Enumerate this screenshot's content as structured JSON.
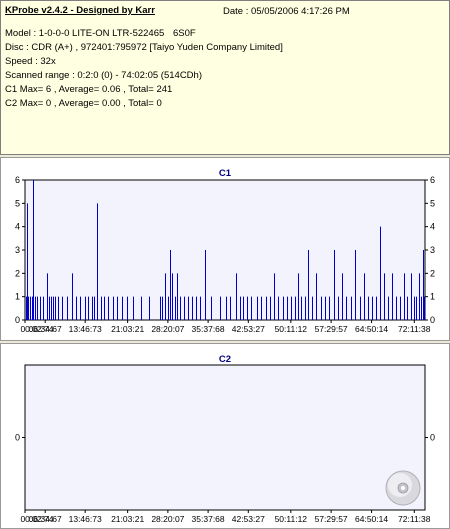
{
  "info": {
    "title": "KProbe v2.4.2 - Designed by Karr",
    "date": "Date : 05/05/2006 4:17:26 PM",
    "model": "Model : 1-0-0-0 LITE-ON LTR-522465",
    "firmware": "6S0F",
    "disc": "Disc : CDR (A+) , 972401:795972 [Taiyo Yuden Company Limited]",
    "speed": "Speed : 32x",
    "range": "Scanned range : 0:2:0 (0) - 74:02:05 (514CDh)",
    "c1_stats": "C1 Max= 6 , Average= 0.06 , Total= 241",
    "c2_stats": "C2 Max= 0 , Average= 0.00 , Total= 0"
  },
  "colors": {
    "bar": "#0000c8",
    "plot_bg": "#f3f3fd",
    "title": "#000080",
    "info_bg": "#ffffe1"
  },
  "icons": {
    "disc": "cd-disc-icon"
  },
  "chart_data": [
    {
      "type": "bar",
      "title": "C1",
      "ylim": [
        0,
        6
      ],
      "yticks": [
        0,
        1,
        2,
        3,
        4,
        5,
        6
      ],
      "xlim": [
        2.74,
        74.02
      ],
      "xtick_labels": [
        "00:02:74",
        "06:34:67",
        "13:46:73",
        "21:03:21",
        "28:20:07",
        "35:37:68",
        "42:53:27",
        "50:11:12",
        "57:29:57",
        "64:50:14",
        "72:11:38"
      ],
      "xtick_values": [
        2.74,
        6.34,
        13.46,
        21.03,
        28.2,
        35.37,
        42.53,
        50.11,
        57.29,
        64.5,
        72.11
      ],
      "points": [
        {
          "x": 2.9,
          "y": 1
        },
        {
          "x": 3.1,
          "y": 5
        },
        {
          "x": 3.35,
          "y": 1
        },
        {
          "x": 3.6,
          "y": 1
        },
        {
          "x": 3.9,
          "y": 1
        },
        {
          "x": 4.2,
          "y": 6
        },
        {
          "x": 4.5,
          "y": 1
        },
        {
          "x": 4.9,
          "y": 1
        },
        {
          "x": 5.4,
          "y": 1
        },
        {
          "x": 6.0,
          "y": 1
        },
        {
          "x": 6.7,
          "y": 2
        },
        {
          "x": 7.0,
          "y": 1
        },
        {
          "x": 7.3,
          "y": 1
        },
        {
          "x": 7.7,
          "y": 1
        },
        {
          "x": 8.1,
          "y": 1
        },
        {
          "x": 8.6,
          "y": 1
        },
        {
          "x": 9.3,
          "y": 1
        },
        {
          "x": 10.2,
          "y": 1
        },
        {
          "x": 11.1,
          "y": 2
        },
        {
          "x": 11.8,
          "y": 1
        },
        {
          "x": 12.6,
          "y": 1
        },
        {
          "x": 13.4,
          "y": 1
        },
        {
          "x": 14.0,
          "y": 1
        },
        {
          "x": 14.6,
          "y": 1
        },
        {
          "x": 15.1,
          "y": 1
        },
        {
          "x": 15.6,
          "y": 5
        },
        {
          "x": 16.2,
          "y": 1
        },
        {
          "x": 16.8,
          "y": 1
        },
        {
          "x": 17.5,
          "y": 1
        },
        {
          "x": 18.4,
          "y": 1
        },
        {
          "x": 19.2,
          "y": 1
        },
        {
          "x": 20.0,
          "y": 1
        },
        {
          "x": 21.0,
          "y": 1
        },
        {
          "x": 22.0,
          "y": 1
        },
        {
          "x": 23.5,
          "y": 1
        },
        {
          "x": 24.8,
          "y": 1
        },
        {
          "x": 26.8,
          "y": 1
        },
        {
          "x": 27.2,
          "y": 1
        },
        {
          "x": 27.7,
          "y": 2
        },
        {
          "x": 28.2,
          "y": 1
        },
        {
          "x": 28.6,
          "y": 3
        },
        {
          "x": 29.0,
          "y": 2
        },
        {
          "x": 29.4,
          "y": 1
        },
        {
          "x": 29.9,
          "y": 2
        },
        {
          "x": 30.3,
          "y": 1
        },
        {
          "x": 31.0,
          "y": 1
        },
        {
          "x": 31.8,
          "y": 1
        },
        {
          "x": 32.5,
          "y": 1
        },
        {
          "x": 33.2,
          "y": 1
        },
        {
          "x": 34.0,
          "y": 1
        },
        {
          "x": 34.8,
          "y": 3
        },
        {
          "x": 35.8,
          "y": 1
        },
        {
          "x": 37.5,
          "y": 1
        },
        {
          "x": 38.5,
          "y": 1
        },
        {
          "x": 39.2,
          "y": 1
        },
        {
          "x": 40.4,
          "y": 2
        },
        {
          "x": 41.0,
          "y": 1
        },
        {
          "x": 41.6,
          "y": 1
        },
        {
          "x": 42.3,
          "y": 1
        },
        {
          "x": 43.1,
          "y": 1
        },
        {
          "x": 44.0,
          "y": 1
        },
        {
          "x": 44.8,
          "y": 1
        },
        {
          "x": 45.6,
          "y": 1
        },
        {
          "x": 46.4,
          "y": 1
        },
        {
          "x": 47.2,
          "y": 2
        },
        {
          "x": 47.9,
          "y": 1
        },
        {
          "x": 48.7,
          "y": 1
        },
        {
          "x": 49.5,
          "y": 1
        },
        {
          "x": 50.1,
          "y": 1
        },
        {
          "x": 50.8,
          "y": 1
        },
        {
          "x": 51.4,
          "y": 2
        },
        {
          "x": 52.0,
          "y": 1
        },
        {
          "x": 52.6,
          "y": 1
        },
        {
          "x": 53.2,
          "y": 3
        },
        {
          "x": 53.9,
          "y": 1
        },
        {
          "x": 54.6,
          "y": 2
        },
        {
          "x": 55.4,
          "y": 1
        },
        {
          "x": 56.2,
          "y": 1
        },
        {
          "x": 57.0,
          "y": 1
        },
        {
          "x": 57.8,
          "y": 3
        },
        {
          "x": 58.5,
          "y": 1
        },
        {
          "x": 59.2,
          "y": 2
        },
        {
          "x": 60.0,
          "y": 1
        },
        {
          "x": 60.8,
          "y": 1
        },
        {
          "x": 61.6,
          "y": 3
        },
        {
          "x": 62.4,
          "y": 1
        },
        {
          "x": 63.1,
          "y": 2
        },
        {
          "x": 63.8,
          "y": 1
        },
        {
          "x": 64.5,
          "y": 1
        },
        {
          "x": 65.3,
          "y": 1
        },
        {
          "x": 66.0,
          "y": 4
        },
        {
          "x": 66.7,
          "y": 2
        },
        {
          "x": 67.4,
          "y": 1
        },
        {
          "x": 68.1,
          "y": 2
        },
        {
          "x": 68.8,
          "y": 1
        },
        {
          "x": 69.5,
          "y": 1
        },
        {
          "x": 70.2,
          "y": 2
        },
        {
          "x": 70.9,
          "y": 1
        },
        {
          "x": 71.5,
          "y": 2
        },
        {
          "x": 72.0,
          "y": 1
        },
        {
          "x": 72.5,
          "y": 1
        },
        {
          "x": 72.9,
          "y": 2
        },
        {
          "x": 73.3,
          "y": 1
        },
        {
          "x": 73.65,
          "y": 3
        },
        {
          "x": 73.9,
          "y": 1
        }
      ],
      "grid": false
    },
    {
      "type": "bar",
      "title": "C2",
      "ylim": [
        -1,
        1
      ],
      "yticks": [
        0
      ],
      "xlim": [
        2.74,
        74.02
      ],
      "xtick_labels": [
        "00:02:74",
        "06:34:67",
        "13:46:73",
        "21:03:21",
        "28:20:07",
        "35:37:68",
        "42:53:27",
        "50:11:12",
        "57:29:57",
        "64:50:14",
        "72:11:38"
      ],
      "xtick_values": [
        2.74,
        6.34,
        13.46,
        21.03,
        28.2,
        35.37,
        42.53,
        50.11,
        57.29,
        64.5,
        72.11
      ],
      "points": [],
      "grid": false
    }
  ]
}
